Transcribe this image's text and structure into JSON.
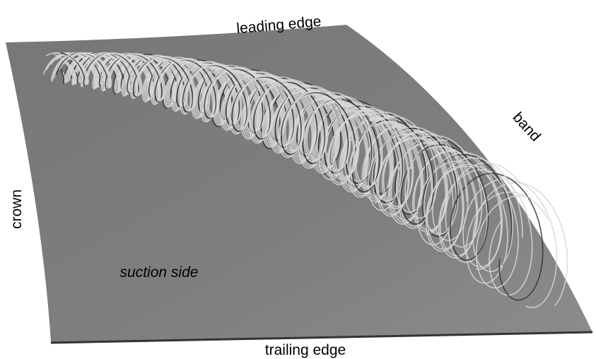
{
  "labels": {
    "leading_edge": "leading edge",
    "band": "band",
    "crown": "crown",
    "suction_side": "suction side",
    "trailing_edge": "trailing edge"
  }
}
